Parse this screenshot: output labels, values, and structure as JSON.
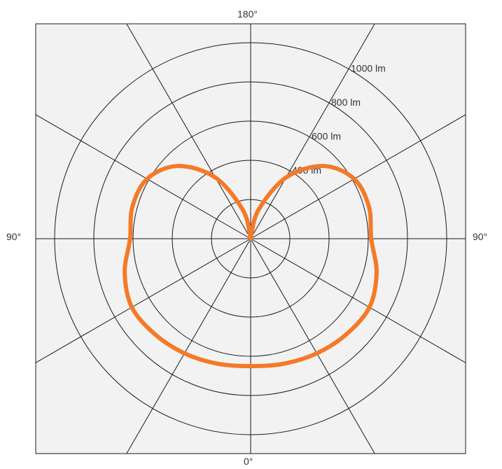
{
  "chart_data": {
    "type": "polar",
    "angle_labels": {
      "top": "180°",
      "bottom": "0°",
      "left": "90°",
      "right": "90°"
    },
    "radial_ticks": [
      {
        "value": 200,
        "label": ""
      },
      {
        "value": 400,
        "label": "400 lm"
      },
      {
        "value": 600,
        "label": "600 lm"
      },
      {
        "value": 800,
        "label": "800 lm"
      },
      {
        "value": 1000,
        "label": "1000 lm"
      }
    ],
    "r_max": 1100,
    "spoke_angles_deg": [
      0,
      30,
      60,
      90,
      120,
      150,
      180,
      210,
      240,
      270,
      300,
      330
    ],
    "series": [
      {
        "color": "#F47A28",
        "points": [
          {
            "angle": 0,
            "value": 650
          },
          {
            "angle": 15,
            "value": 660
          },
          {
            "angle": 30,
            "value": 675
          },
          {
            "angle": 45,
            "value": 690
          },
          {
            "angle": 60,
            "value": 700
          },
          {
            "angle": 75,
            "value": 665
          },
          {
            "angle": 90,
            "value": 615
          },
          {
            "angle": 105,
            "value": 625
          },
          {
            "angle": 120,
            "value": 610
          },
          {
            "angle": 135,
            "value": 525
          },
          {
            "angle": 150,
            "value": 360
          },
          {
            "angle": 165,
            "value": 150
          },
          {
            "angle": 180,
            "value": 0
          }
        ]
      }
    ],
    "colors": {
      "background": "#F2F2F2",
      "grid": "#1A1A1A",
      "curve": "#F47A28"
    }
  }
}
